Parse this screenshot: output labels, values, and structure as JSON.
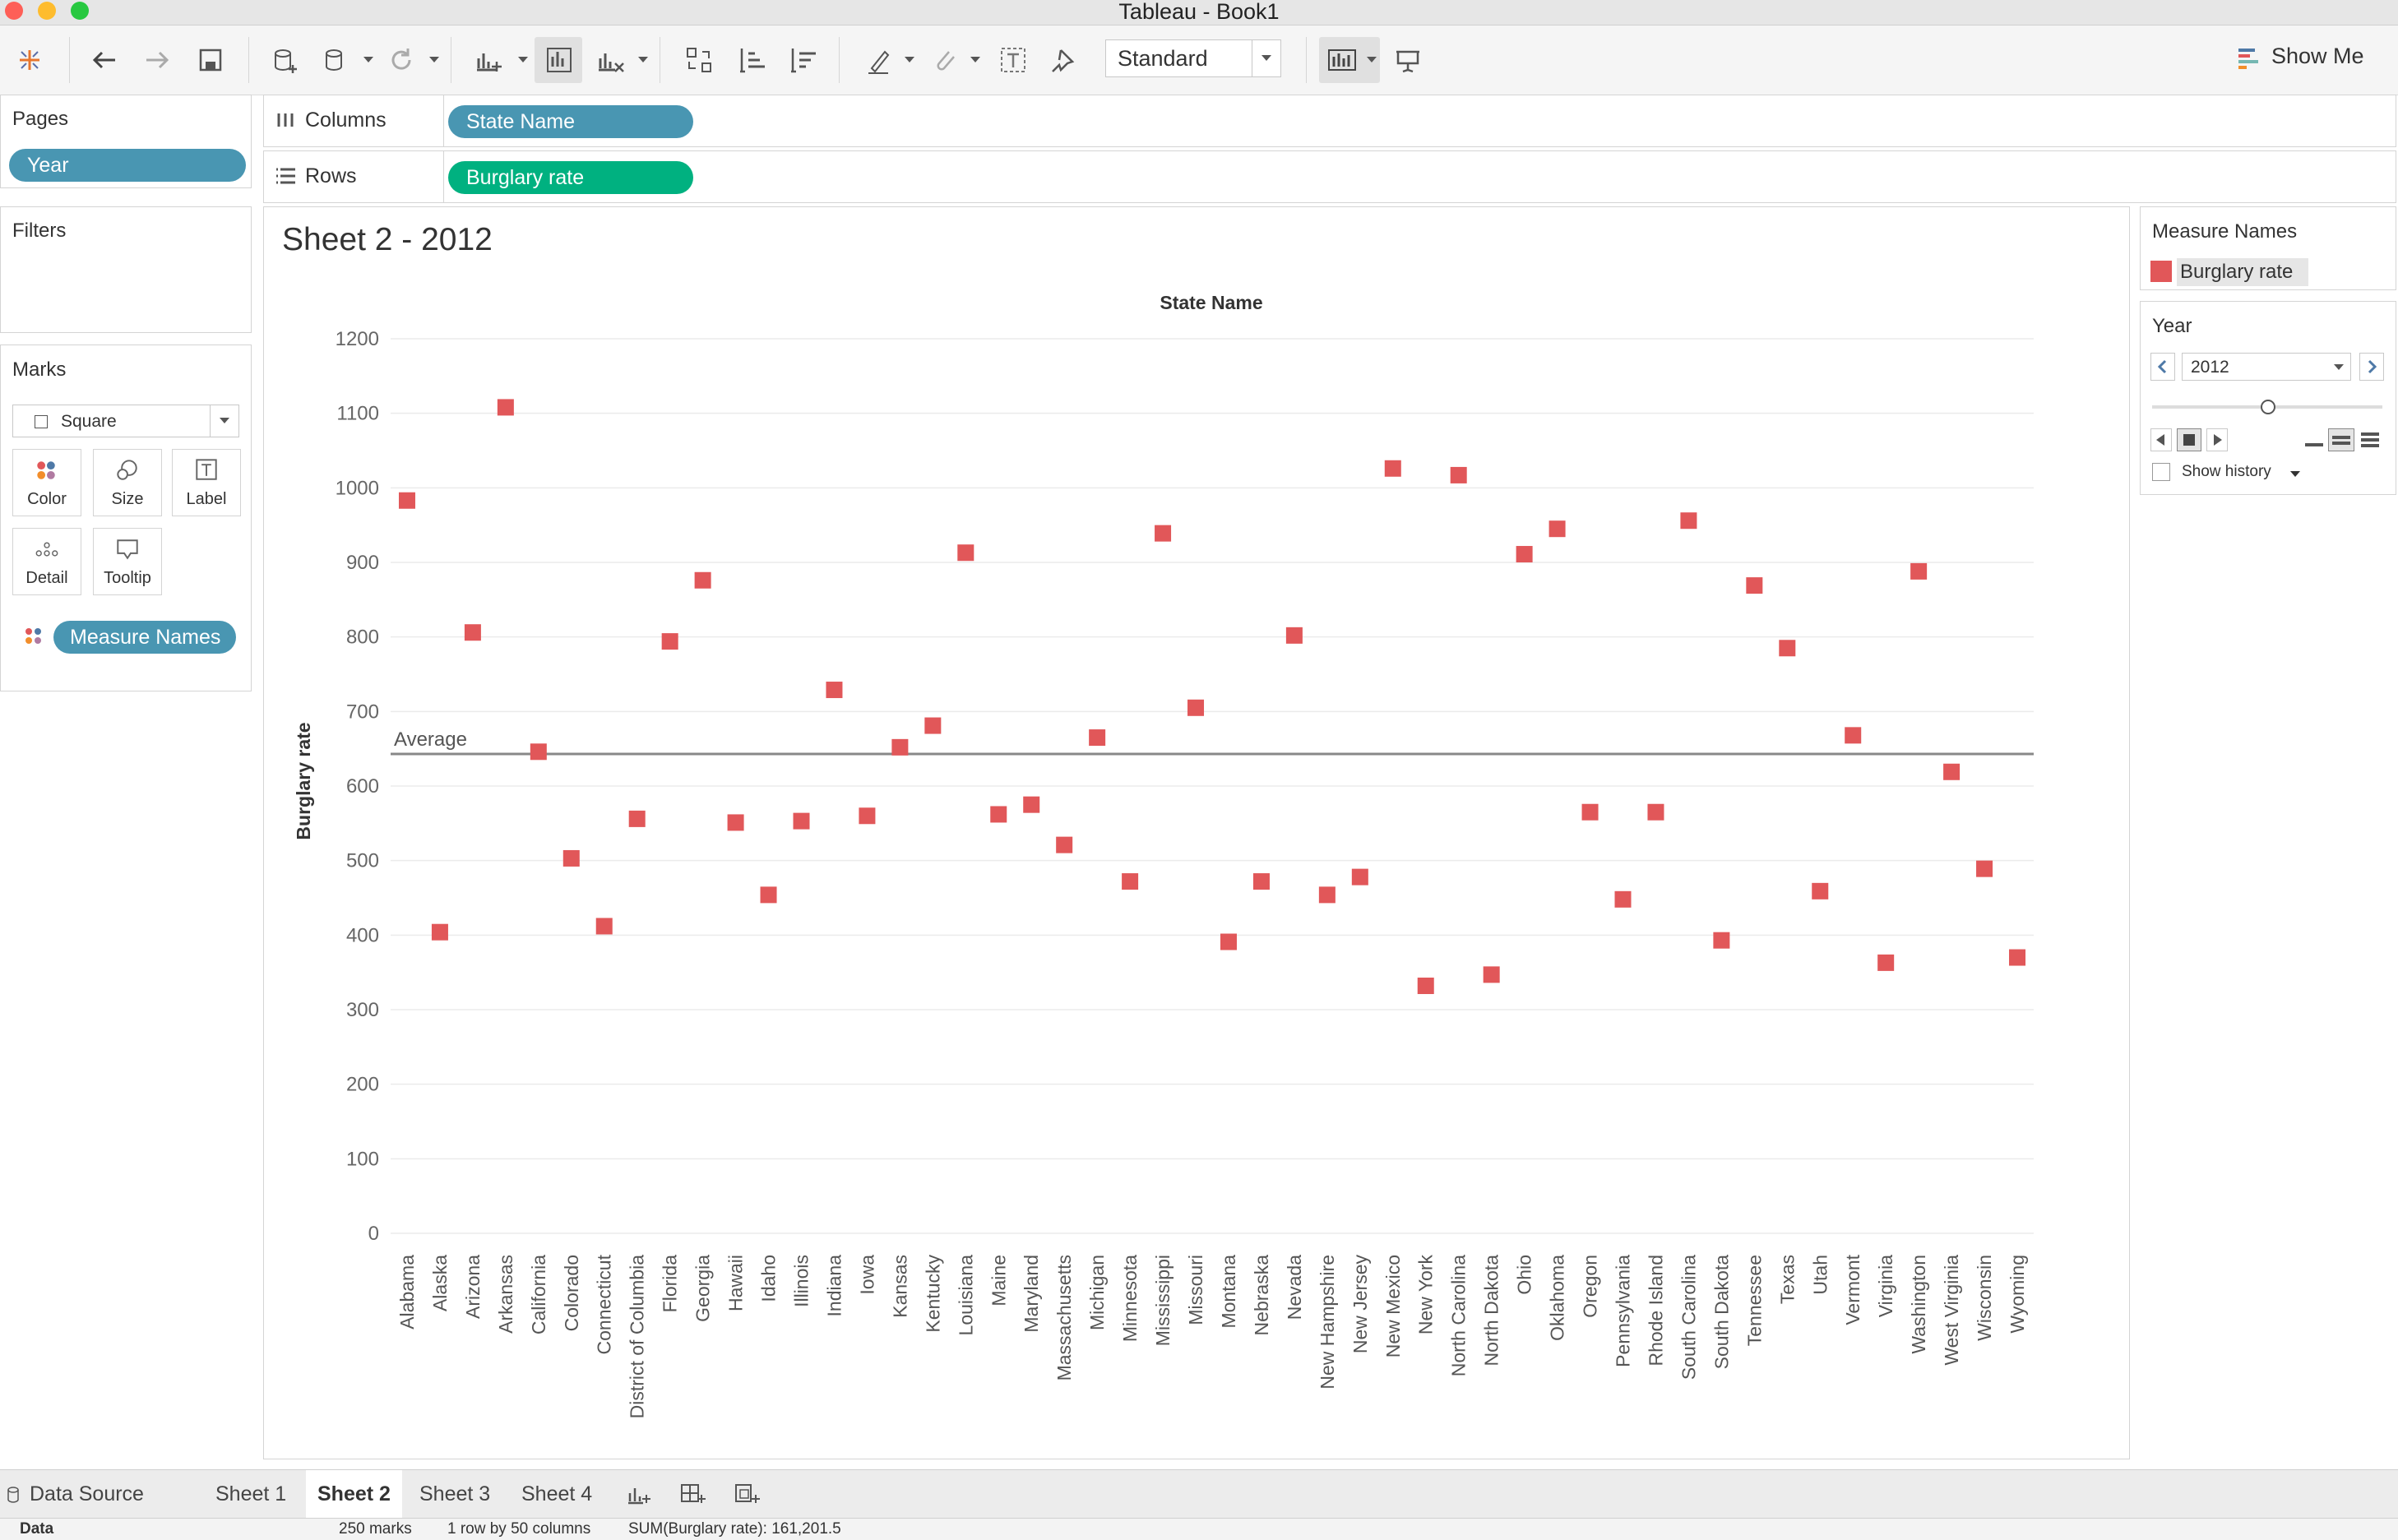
{
  "window": {
    "title": "Tableau - Book1"
  },
  "toolbar": {
    "mark_size_dropdown": "Standard",
    "show_me_label": "Show Me"
  },
  "pages_card": {
    "title": "Pages",
    "pill": "Year"
  },
  "filters_card": {
    "title": "Filters"
  },
  "marks_card": {
    "title": "Marks",
    "mark_type": "Square",
    "buttons": [
      "Color",
      "Size",
      "Label",
      "Detail",
      "Tooltip"
    ],
    "pill": "Measure Names"
  },
  "shelves": {
    "columns": {
      "label": "Columns",
      "pill": "State Name"
    },
    "rows": {
      "label": "Rows",
      "pill": "Burglary rate"
    }
  },
  "sheet": {
    "title": "Sheet 2 - 2012"
  },
  "legend": {
    "title": "Measure Names",
    "items": [
      "Burglary rate"
    ],
    "color": "#e15759"
  },
  "year_control": {
    "title": "Year",
    "value": "2012",
    "show_history_label": "Show history"
  },
  "chart_data": {
    "type": "scatter",
    "title": "",
    "header": "State Name",
    "xlabel": "",
    "ylabel": "Burglary rate",
    "ylim": [
      0,
      1200
    ],
    "yticks": [
      0,
      100,
      200,
      300,
      400,
      500,
      600,
      700,
      800,
      900,
      1000,
      1100,
      1200
    ],
    "grid": true,
    "mark_color": "#e15759",
    "reference_line": {
      "label": "Average",
      "value": 643
    },
    "categories": [
      "Alabama",
      "Alaska",
      "Arizona",
      "Arkansas",
      "California",
      "Colorado",
      "Connecticut",
      "District of Columbia",
      "Florida",
      "Georgia",
      "Hawaii",
      "Idaho",
      "Illinois",
      "Indiana",
      "Iowa",
      "Kansas",
      "Kentucky",
      "Louisiana",
      "Maine",
      "Maryland",
      "Massachusetts",
      "Michigan",
      "Minnesota",
      "Mississippi",
      "Missouri",
      "Montana",
      "Nebraska",
      "Nevada",
      "New Hampshire",
      "New Jersey",
      "New Mexico",
      "New York",
      "North Carolina",
      "North Dakota",
      "Ohio",
      "Oklahoma",
      "Oregon",
      "Pennsylvania",
      "Rhode Island",
      "South Carolina",
      "South Dakota",
      "Tennessee",
      "Texas",
      "Utah",
      "Vermont",
      "Virginia",
      "Washington",
      "West Virginia",
      "Wisconsin",
      "Wyoming"
    ],
    "values": [
      983,
      404,
      806,
      1108,
      646,
      503,
      412,
      556,
      794,
      876,
      551,
      454,
      553,
      729,
      560,
      652,
      681,
      913,
      562,
      575,
      521,
      665,
      472,
      939,
      705,
      391,
      472,
      802,
      454,
      478,
      1026,
      332,
      1017,
      347,
      911,
      945,
      565,
      448,
      565,
      956,
      393,
      869,
      785,
      459,
      668,
      363,
      888,
      619,
      489,
      370
    ]
  },
  "tabs": {
    "data_source": "Data Source",
    "sheets": [
      "Sheet 1",
      "Sheet 2",
      "Sheet 3",
      "Sheet 4"
    ]
  },
  "status": {
    "data_label": "Data",
    "marks": "250 marks",
    "dims": "1 row by 50 columns",
    "sum": "SUM(Burglary rate): 161,201.5"
  }
}
